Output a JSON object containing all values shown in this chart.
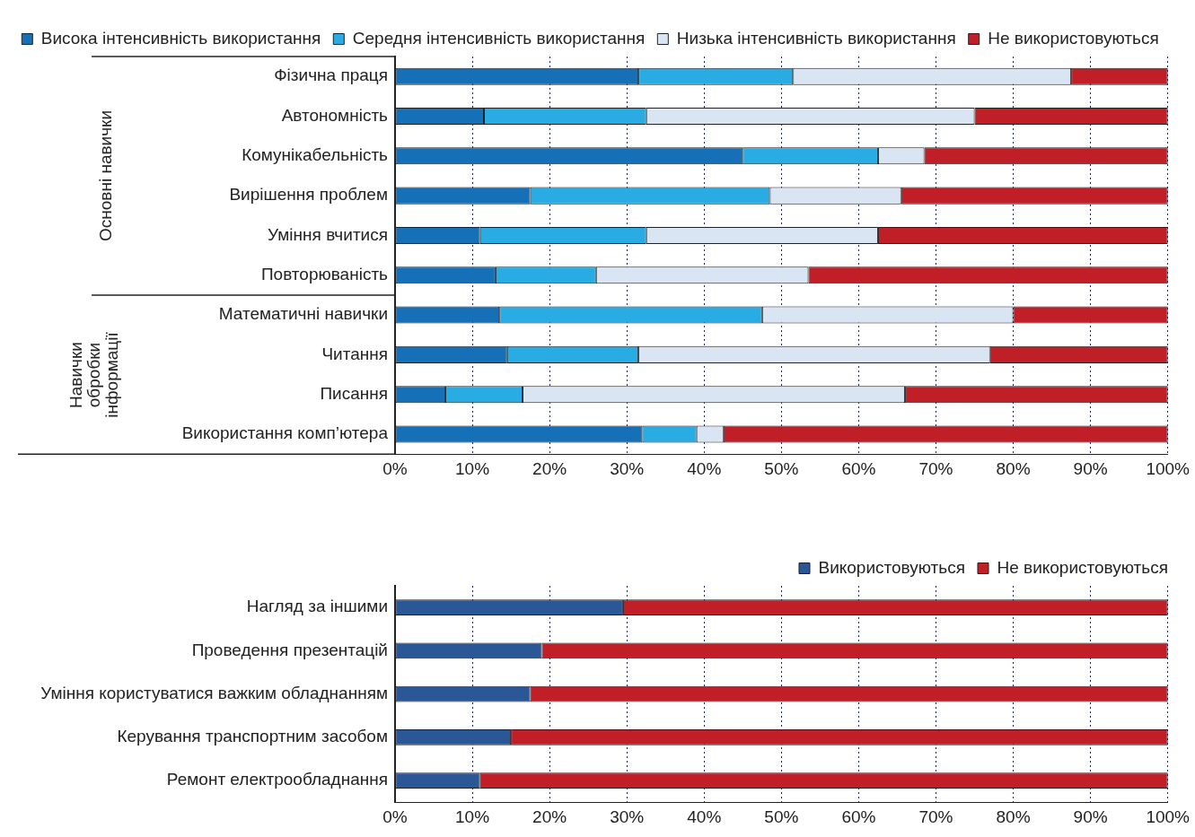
{
  "chart_data": [
    {
      "type": "bar",
      "orientation": "horizontal",
      "stacked": true,
      "legend": "top",
      "grid": "x",
      "categories": [
        "Фізична праця",
        "Автономність",
        "Комунікабельність",
        "Вирішення проблем",
        "Уміння вчитися",
        "Повторюваність",
        "Математичні навички",
        "Читання",
        "Писання",
        "Використання комп’ютера"
      ],
      "series": [
        {
          "name": "Висока інтенсивність використання",
          "color": "#1570b8",
          "values": [
            31.5,
            11.5,
            45,
            17.5,
            11,
            13,
            13.5,
            14.5,
            6.5,
            32
          ]
        },
        {
          "name": "Середня інтенсивність використання",
          "color": "#29ace3",
          "values": [
            20,
            21,
            17.5,
            31,
            21.5,
            13,
            34,
            17,
            10,
            7
          ]
        },
        {
          "name": "Низька інтенсивність використання",
          "color": "#dae5f3",
          "values": [
            36,
            42.5,
            6,
            17,
            30,
            27.5,
            32.5,
            45.5,
            49.5,
            3.5
          ]
        },
        {
          "name": "Не використовуються",
          "color": "#c01f27",
          "values": [
            12.5,
            25,
            31.5,
            34.5,
            37.5,
            46.5,
            20,
            23,
            34,
            57.5
          ]
        }
      ],
      "xlim": [
        0,
        100
      ],
      "xticks": [
        {
          "value": 0,
          "label": "0%"
        },
        {
          "value": 10,
          "label": "10%"
        },
        {
          "value": 20,
          "label": "20%"
        },
        {
          "value": 30,
          "label": "30%"
        },
        {
          "value": 40,
          "label": "40%"
        },
        {
          "value": 50,
          "label": "50%"
        },
        {
          "value": 60,
          "label": "60%"
        },
        {
          "value": 70,
          "label": "70%"
        },
        {
          "value": 80,
          "label": "80%"
        },
        {
          "value": 90,
          "label": "90%"
        },
        {
          "value": 100,
          "label": "100%"
        }
      ],
      "annotations": [
        "Основні навички",
        "Навички обробки інформації"
      ]
    },
    {
      "type": "bar",
      "orientation": "horizontal",
      "stacked": true,
      "legend": "top right",
      "grid": "x",
      "categories": [
        "Нагляд за іншими",
        "Проведення презентацій",
        "Уміння користуватися важким обладнанням",
        "Керування транспортним засобом",
        "Ремонт електрообладнання"
      ],
      "series": [
        {
          "name": "Використовуються",
          "color": "#2b5797",
          "values": [
            29.5,
            19,
            17.5,
            15,
            11
          ]
        },
        {
          "name": "Не використовуються",
          "color": "#c01f27",
          "values": [
            70.5,
            81,
            82.5,
            85,
            89
          ]
        }
      ],
      "xlim": [
        0,
        100
      ],
      "xticks": [
        {
          "value": 0,
          "label": "0%"
        },
        {
          "value": 10,
          "label": "10%"
        },
        {
          "value": 20,
          "label": "20%"
        },
        {
          "value": 30,
          "label": "30%"
        },
        {
          "value": 40,
          "label": "40%"
        },
        {
          "value": 50,
          "label": "50%"
        },
        {
          "value": 60,
          "label": "60%"
        },
        {
          "value": 70,
          "label": "70%"
        },
        {
          "value": 80,
          "label": "80%"
        },
        {
          "value": 90,
          "label": "90%"
        },
        {
          "value": 100,
          "label": "100%"
        }
      ]
    }
  ]
}
